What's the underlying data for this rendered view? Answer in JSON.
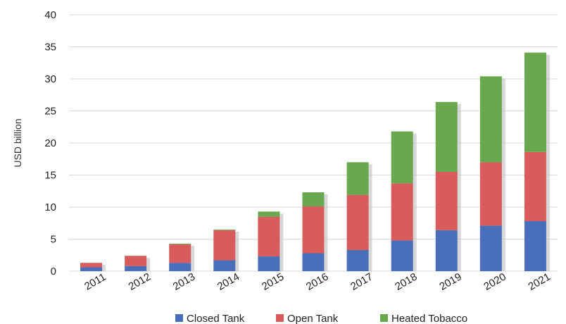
{
  "chart_data": {
    "type": "bar",
    "stacked": true,
    "title": "",
    "xlabel": "",
    "ylabel": "USD billion",
    "ylim": [
      0,
      40
    ],
    "yticks": [
      0,
      5,
      10,
      15,
      20,
      25,
      30,
      35,
      40
    ],
    "grid": true,
    "legend_position": "bottom",
    "categories": [
      "2011",
      "2012",
      "2013",
      "2014",
      "2015",
      "2016",
      "2017",
      "2018",
      "2019",
      "2020",
      "2021"
    ],
    "series": [
      {
        "name": "Closed Tank",
        "color": "#4a6fba",
        "values": [
          0.6,
          0.8,
          1.3,
          1.7,
          2.3,
          2.8,
          3.3,
          4.8,
          6.4,
          7.1,
          7.8
        ]
      },
      {
        "name": "Open Tank",
        "color": "#d95c5c",
        "values": [
          0.7,
          1.6,
          2.9,
          4.7,
          6.2,
          7.3,
          8.6,
          8.9,
          9.1,
          9.9,
          10.8
        ]
      },
      {
        "name": "Heated Tobacco",
        "color": "#69a84f",
        "values": [
          0.0,
          0.0,
          0.1,
          0.1,
          0.8,
          2.2,
          5.1,
          8.1,
          10.9,
          13.4,
          15.5
        ]
      }
    ]
  }
}
